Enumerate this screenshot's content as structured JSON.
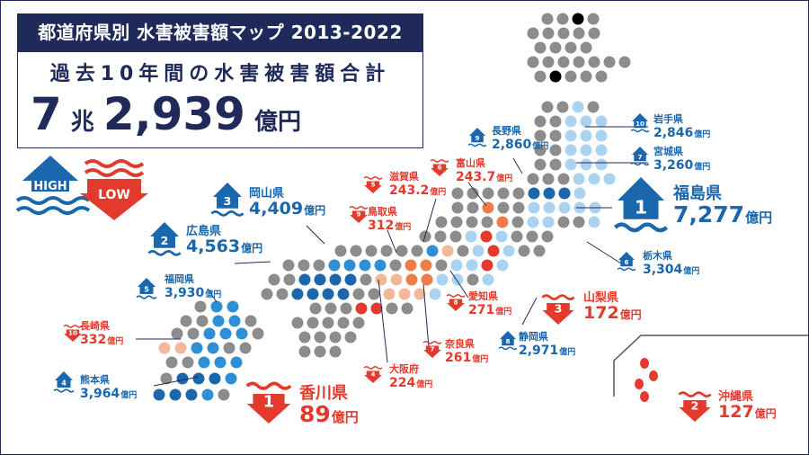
{
  "title": "都道府県別 水害被害額マップ 2013-2022",
  "total": {
    "label": "過去10年間の水害被害額合計",
    "cho_num": "7",
    "cho_unit": "兆",
    "oku_num": "2,939",
    "oku_unit": "億円"
  },
  "legend": {
    "high": "HIGH",
    "low": "LOW"
  },
  "colors": {
    "navy": "#1f2a5a",
    "blue_dark": "#1a67ad",
    "blue_mid": "#2f8fd4",
    "blue_light": "#a9d3f0",
    "red": "#e23a2d",
    "orange": "#ef7d4a",
    "peach": "#f3b89a",
    "gray": "#8c8c8c"
  },
  "high_prefectures": [
    {
      "rank": "1",
      "name": "福島県",
      "amount": "7,277",
      "unit": "億円"
    },
    {
      "rank": "2",
      "name": "広島県",
      "amount": "4,563",
      "unit": "億円"
    },
    {
      "rank": "3",
      "name": "岡山県",
      "amount": "4,409",
      "unit": "億円"
    },
    {
      "rank": "4",
      "name": "熊本県",
      "amount": "3,964",
      "unit": "億円"
    },
    {
      "rank": "5",
      "name": "福岡県",
      "amount": "3,930",
      "unit": "億円"
    },
    {
      "rank": "6",
      "name": "栃木県",
      "amount": "3,304",
      "unit": "億円"
    },
    {
      "rank": "7",
      "name": "宮城県",
      "amount": "3,260",
      "unit": "億円"
    },
    {
      "rank": "8",
      "name": "静岡県",
      "amount": "2,971",
      "unit": "億円"
    },
    {
      "rank": "9",
      "name": "長野県",
      "amount": "2,860",
      "unit": "億円"
    },
    {
      "rank": "10",
      "name": "岩手県",
      "amount": "2,846",
      "unit": "億円"
    }
  ],
  "low_prefectures": [
    {
      "rank": "1",
      "name": "香川県",
      "amount": "89",
      "unit": "億円"
    },
    {
      "rank": "2",
      "name": "沖縄県",
      "amount": "127",
      "unit": "億円"
    },
    {
      "rank": "3",
      "name": "山梨県",
      "amount": "172",
      "unit": "億円"
    },
    {
      "rank": "4",
      "name": "大阪府",
      "amount": "224",
      "unit": "億円"
    },
    {
      "rank": "5",
      "name": "滋賀県",
      "amount": "243.2",
      "unit": "億円"
    },
    {
      "rank": "6",
      "name": "富山県",
      "amount": "243.7",
      "unit": "億円"
    },
    {
      "rank": "7",
      "name": "奈良県",
      "amount": "261",
      "unit": "億円"
    },
    {
      "rank": "8",
      "name": "愛知県",
      "amount": "271",
      "unit": "億円"
    },
    {
      "rank": "9",
      "name": "鳥取県",
      "amount": "312",
      "unit": "億円"
    },
    {
      "rank": "10",
      "name": "長崎県",
      "amount": "332",
      "unit": "億円"
    }
  ]
}
